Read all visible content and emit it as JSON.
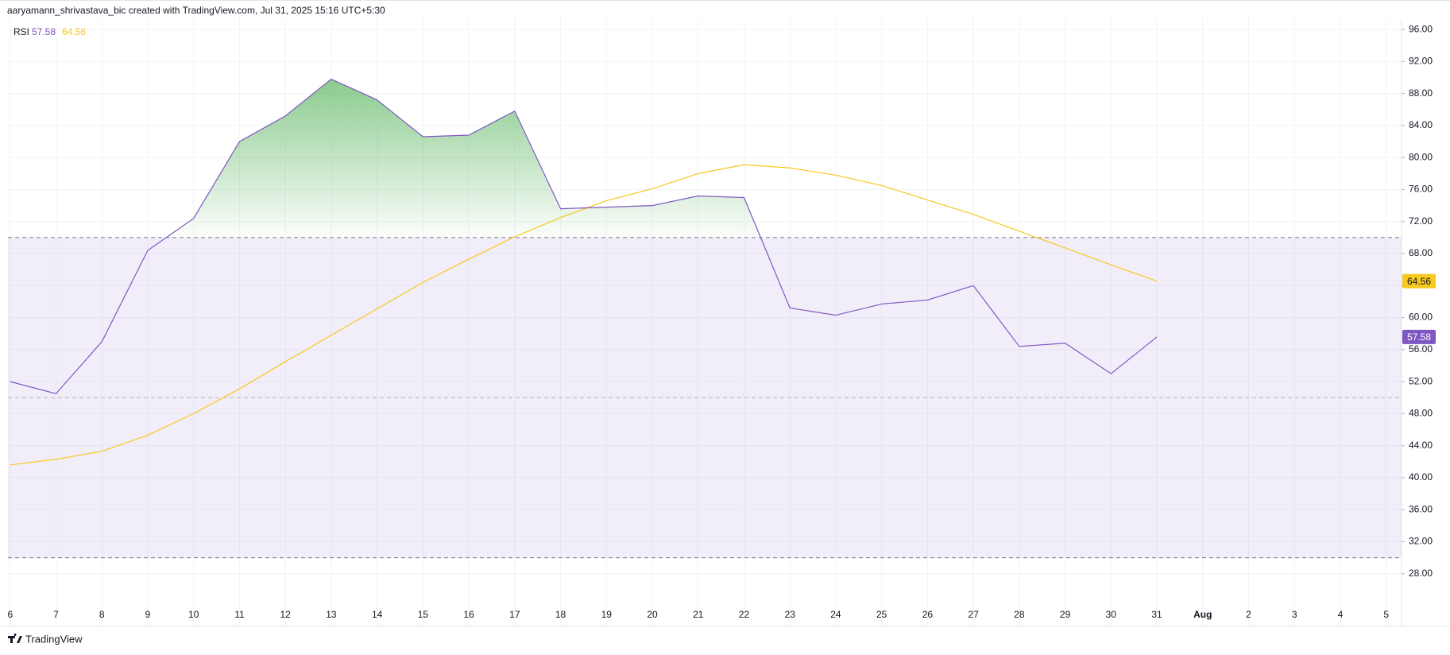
{
  "chart_data": {
    "type": "line",
    "title": "aaryamann_shrivastava_bic created with TradingView.com, Jul 31, 2025 15:16 UTC+5:30",
    "footer": "TradingView",
    "categories": [
      "6",
      "7",
      "8",
      "9",
      "10",
      "11",
      "12",
      "13",
      "14",
      "15",
      "16",
      "17",
      "18",
      "19",
      "20",
      "21",
      "22",
      "23",
      "24",
      "25",
      "26",
      "27",
      "28",
      "29",
      "30",
      "31",
      "Aug",
      "2",
      "3",
      "4",
      "5"
    ],
    "series": [
      {
        "name": "RSI",
        "color": "#7e57c2",
        "values": [
          52.0,
          50.5,
          57.0,
          68.4,
          72.4,
          82.0,
          85.2,
          89.8,
          87.2,
          82.6,
          82.8,
          85.8,
          73.6,
          73.8,
          74.0,
          75.2,
          75.0,
          61.2,
          60.3,
          61.7,
          62.2,
          64.0,
          56.4,
          56.8,
          53.0,
          57.58,
          null,
          null,
          null,
          null,
          null
        ]
      },
      {
        "color": "#f7c81e",
        "values": [
          41.6,
          42.3,
          43.3,
          45.3,
          48.0,
          51.1,
          54.5,
          57.8,
          61.1,
          64.4,
          67.3,
          70.1,
          72.5,
          74.6,
          76.1,
          78.0,
          79.1,
          78.7,
          77.8,
          76.5,
          74.7,
          72.9,
          70.8,
          68.7,
          66.6,
          64.56,
          null,
          null,
          null,
          null,
          null
        ]
      }
    ],
    "bands": {
      "upper": 70,
      "middle": 50,
      "lower": 30
    },
    "ylim": [
      24.5,
      97.4
    ],
    "yticks": [
      {
        "value": 28,
        "label": "28.00"
      },
      {
        "value": 32,
        "label": "32.00"
      },
      {
        "value": 36,
        "label": "36.00"
      },
      {
        "value": 40,
        "label": "40.00"
      },
      {
        "value": 44,
        "label": "44.00"
      },
      {
        "value": 48,
        "label": "48.00"
      },
      {
        "value": 52,
        "label": "52.00"
      },
      {
        "value": 56,
        "label": "56.00"
      },
      {
        "value": 60,
        "label": "60.00"
      },
      {
        "value": 64,
        "label": "64.00"
      },
      {
        "value": 68,
        "label": "68.00"
      },
      {
        "value": 72,
        "label": "72.00"
      },
      {
        "value": 76,
        "label": "76.00"
      },
      {
        "value": 80,
        "label": "80.00"
      },
      {
        "value": 84,
        "label": "84.00"
      },
      {
        "value": 88,
        "label": "88.00"
      },
      {
        "value": 92,
        "label": "92.00"
      },
      {
        "value": 96,
        "label": "96.00"
      }
    ],
    "grid": true
  }
}
